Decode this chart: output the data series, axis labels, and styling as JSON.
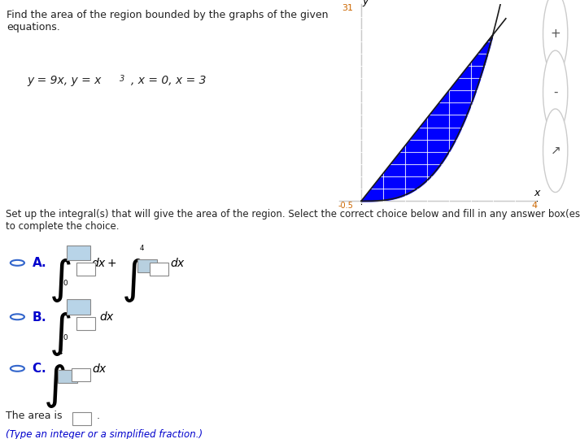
{
  "title_text": "Find the area of the region bounded by the graphs of the given\nequations.",
  "equation_text": "y = 9x, y = x³, x = 0, x = 3",
  "graph_xlim": [
    -0.5,
    4
  ],
  "graph_ylim": [
    -0.5,
    32
  ],
  "graph_xtick_label": "4",
  "graph_ytick_label": "31",
  "fill_color": "#0000FF",
  "line_color": "#1a1a1a",
  "fill_alpha": 1.0,
  "grid_color": "#aaaaaa",
  "bg_color": "#ffffff",
  "text_color_blue": "#0000CC",
  "text_color_black": "#222222",
  "set_up_text": "Set up the integral(s) that will give the area of the region. Select the correct choice below and fill in any answer box(es)\nto complete the choice.",
  "choice_A": "A.",
  "choice_B": "B.",
  "choice_C": "C.",
  "area_text": "The area is",
  "fraction_text": "(Type an integer or a simplified fraction.)",
  "icon_color": "#cccccc",
  "box_fill": "#b8d4e8"
}
